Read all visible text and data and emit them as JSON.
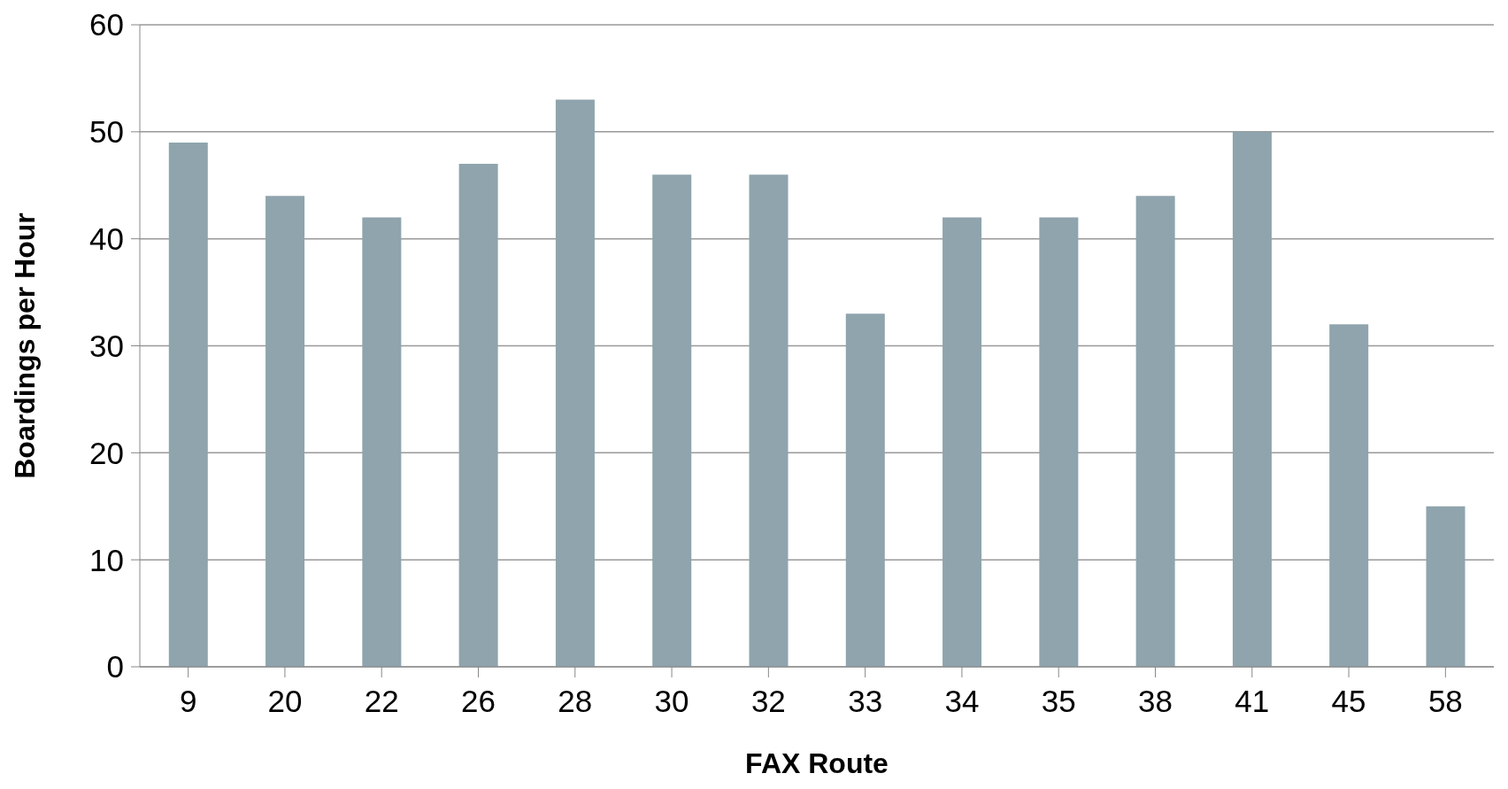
{
  "chart_data": {
    "type": "bar",
    "xlabel": "FAX Route",
    "ylabel": "Boardings per Hour",
    "categories": [
      "9",
      "20",
      "22",
      "26",
      "28",
      "30",
      "32",
      "33",
      "34",
      "35",
      "38",
      "41",
      "45",
      "58"
    ],
    "values": [
      49,
      44,
      42,
      47,
      53,
      46,
      46,
      33,
      42,
      42,
      44,
      50,
      32,
      15
    ],
    "color": "#8fa4ad",
    "ylim": [
      0,
      60
    ],
    "yticks": [
      0,
      10,
      20,
      30,
      40,
      50,
      60
    ],
    "grid": "y"
  }
}
